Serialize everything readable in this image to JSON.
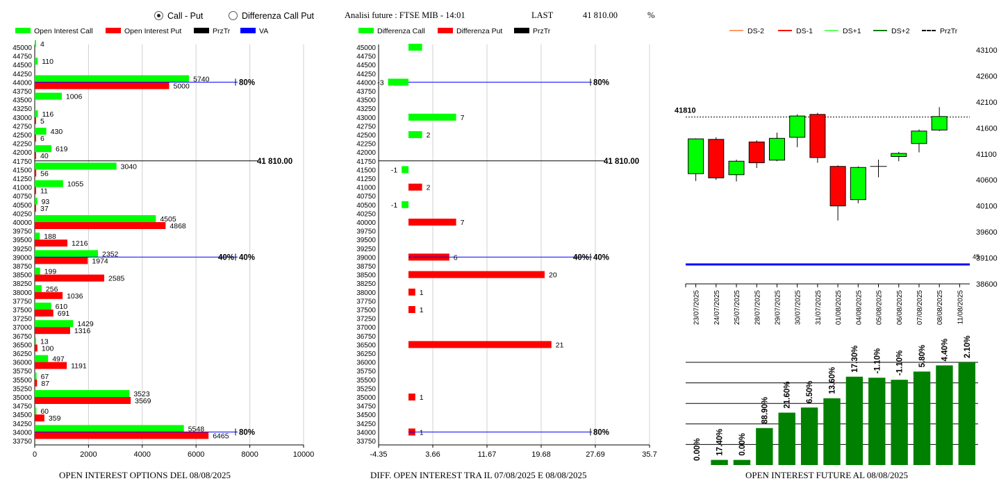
{
  "header": {
    "radio_call_put": "Call - Put",
    "radio_diff": "Differenza Call Put",
    "title": "Analisi future : FTSE MIB - 14:01",
    "last_label": "LAST",
    "last_value": "41 810.00",
    "pct_label": "%"
  },
  "legends": {
    "left": [
      {
        "label": "Open Interest Call",
        "color": "#00ff00"
      },
      {
        "label": "Open Interest Put",
        "color": "#ff0000"
      },
      {
        "label": "PrzTr",
        "color": "#000000"
      },
      {
        "label": "VA",
        "color": "#0000ff"
      }
    ],
    "middle": [
      {
        "label": "Differenza Call",
        "color": "#00ff00"
      },
      {
        "label": "Differenza Put",
        "color": "#ff0000"
      },
      {
        "label": "PrzTr",
        "color": "#000000"
      }
    ],
    "right": [
      {
        "label": "DS-2",
        "color": "#ff9966"
      },
      {
        "label": "DS-1",
        "color": "#ff0000"
      },
      {
        "label": "DS+1",
        "color": "#66ff66"
      },
      {
        "label": "DS+2",
        "color": "#008000"
      },
      {
        "label": "PrzTr",
        "color": "#000000"
      }
    ]
  },
  "captions": {
    "left": "OPEN INTEREST OPTIONS DEL 08/08/2025",
    "middle": "DIFF. OPEN INTEREST TRA IL 07/08/2025 E 08/08/2025",
    "right": "OPEN INTEREST FUTURE AL 08/08/2025"
  },
  "colors": {
    "call": "#00ff00",
    "put": "#ff0000",
    "va": "#0000ff",
    "future_bar": "#008000"
  },
  "chart_data": [
    {
      "type": "bar",
      "orientation": "horizontal",
      "strikes": [
        45000,
        44750,
        44500,
        44250,
        44000,
        43750,
        43500,
        43250,
        43000,
        42750,
        42500,
        42250,
        42000,
        41750,
        41500,
        41250,
        41000,
        40750,
        40500,
        40250,
        40000,
        39750,
        39500,
        39250,
        39000,
        38750,
        38500,
        38250,
        38000,
        37750,
        37500,
        37250,
        37000,
        36750,
        36500,
        36250,
        36000,
        35750,
        35500,
        35250,
        35000,
        34750,
        34500,
        34250,
        34000,
        33750
      ],
      "series": [
        {
          "name": "Open Interest Call",
          "values": [
            4,
            0,
            110,
            0,
            5740,
            0,
            1006,
            0,
            116,
            0,
            430,
            0,
            619,
            0,
            3040,
            0,
            1055,
            0,
            93,
            0,
            4505,
            0,
            188,
            0,
            2352,
            0,
            199,
            0,
            256,
            0,
            610,
            0,
            1429,
            0,
            13,
            0,
            497,
            0,
            67,
            0,
            3523,
            0,
            60,
            0,
            5548,
            0
          ]
        },
        {
          "name": "Open Interest Put",
          "values": [
            0,
            0,
            0,
            0,
            5000,
            0,
            0,
            0,
            5,
            0,
            6,
            0,
            40,
            0,
            56,
            0,
            11,
            0,
            37,
            0,
            4868,
            0,
            1216,
            0,
            1974,
            0,
            2585,
            0,
            1036,
            0,
            691,
            0,
            1316,
            0,
            100,
            0,
            1191,
            0,
            87,
            0,
            3569,
            0,
            359,
            0,
            6465,
            0
          ]
        }
      ],
      "xlim": [
        0,
        10000
      ],
      "xticks": [
        "0",
        "2000",
        "4000",
        "6000",
        "8000",
        "10000"
      ],
      "price_line": {
        "strike": 41750,
        "label": "41 810.00"
      },
      "va_lines": [
        {
          "strike": 44000,
          "labels": [
            "80%"
          ]
        },
        {
          "strike": 39000,
          "labels": [
            "40%",
            "40%"
          ]
        },
        {
          "strike": 34000,
          "labels": [
            "80%"
          ]
        }
      ]
    },
    {
      "type": "bar",
      "orientation": "horizontal",
      "strikes": [
        45000,
        44750,
        44500,
        44250,
        44000,
        43750,
        43500,
        43250,
        43000,
        42750,
        42500,
        42250,
        42000,
        41750,
        41500,
        41250,
        41000,
        40750,
        40500,
        40250,
        40000,
        39750,
        39500,
        39250,
        39000,
        38750,
        38500,
        38250,
        38000,
        37750,
        37500,
        37250,
        37000,
        36750,
        36500,
        36250,
        36000,
        35750,
        35500,
        35250,
        35000,
        34750,
        34500,
        34250,
        34000,
        33750
      ],
      "bars": [
        {
          "strike": 45000,
          "value": 2,
          "series": "Differenza Call",
          "label": ""
        },
        {
          "strike": 44000,
          "value": -3,
          "series": "Differenza Call",
          "label": "-3"
        },
        {
          "strike": 43000,
          "value": 7,
          "series": "Differenza Call",
          "label": "7"
        },
        {
          "strike": 42500,
          "value": 2,
          "series": "Differenza Call",
          "label": "2"
        },
        {
          "strike": 41500,
          "value": -1,
          "series": "Differenza Call",
          "label": "-1"
        },
        {
          "strike": 41000,
          "value": 2,
          "series": "Differenza Put",
          "label": "2"
        },
        {
          "strike": 40500,
          "value": -1,
          "series": "Differenza Call",
          "label": "-1"
        },
        {
          "strike": 40000,
          "value": 7,
          "series": "Differenza Put",
          "label": "7"
        },
        {
          "strike": 39000,
          "value": 6,
          "series": "Differenza Put",
          "label": "6"
        },
        {
          "strike": 38500,
          "value": 20,
          "series": "Differenza Put",
          "label": "20"
        },
        {
          "strike": 38000,
          "value": 1,
          "series": "Differenza Put",
          "label": "1"
        },
        {
          "strike": 37500,
          "value": 1,
          "series": "Differenza Put",
          "label": "1"
        },
        {
          "strike": 36500,
          "value": 21,
          "series": "Differenza Put",
          "label": "21"
        },
        {
          "strike": 35000,
          "value": 1,
          "series": "Differenza Put",
          "label": "1"
        },
        {
          "strike": 34000,
          "value": 1,
          "series": "Differenza Put",
          "label": "1"
        }
      ],
      "xlim": [
        -4.35,
        35.7
      ],
      "xticks": [
        "-4.35",
        "3.66",
        "11.67",
        "19.68",
        "27.69",
        "35.7"
      ],
      "price_line": {
        "strike": 41750,
        "label": "41 810.00"
      },
      "va_lines": [
        {
          "strike": 44000,
          "labels": [
            "80%"
          ]
        },
        {
          "strike": 39000,
          "labels": [
            "40%",
            "40%"
          ]
        },
        {
          "strike": 34000,
          "labels": [
            "80%"
          ]
        }
      ]
    },
    {
      "type": "candlestick",
      "dates": [
        "23/07/2025",
        "24/07/2025",
        "25/07/2025",
        "28/07/2025",
        "29/07/2025",
        "30/07/2025",
        "31/07/2025",
        "01/08/2025",
        "04/08/2025",
        "05/08/2025",
        "06/08/2025",
        "07/08/2025",
        "08/08/2025",
        "11/08/2025"
      ],
      "candles": [
        {
          "open": 40720,
          "close": 41390,
          "high": 41400,
          "low": 40580
        },
        {
          "open": 41380,
          "close": 40640,
          "high": 41420,
          "low": 40600
        },
        {
          "open": 40700,
          "close": 40960,
          "high": 40990,
          "low": 40570
        },
        {
          "open": 41330,
          "close": 40930,
          "high": 41360,
          "low": 40830
        },
        {
          "open": 40980,
          "close": 41400,
          "high": 41510,
          "low": 40960
        },
        {
          "open": 41420,
          "close": 41830,
          "high": 41860,
          "low": 41230
        },
        {
          "open": 41860,
          "close": 41030,
          "high": 41890,
          "low": 40930
        },
        {
          "open": 40860,
          "close": 40100,
          "high": 40880,
          "low": 39820
        },
        {
          "open": 40220,
          "close": 40840,
          "high": 40860,
          "low": 40150
        },
        {
          "open": 40860,
          "close": 40860,
          "high": 40990,
          "low": 40650
        },
        {
          "open": 41050,
          "close": 41110,
          "high": 41140,
          "low": 40960
        },
        {
          "open": 41300,
          "close": 41540,
          "high": 41570,
          "low": 41130
        },
        {
          "open": 41560,
          "close": 41820,
          "high": 42000,
          "low": 41540
        },
        null
      ],
      "ylim": [
        38600,
        43100
      ],
      "yticks": [
        "43100",
        "42600",
        "42100",
        "41600",
        "41100",
        "40600",
        "40100",
        "39600",
        "39100",
        "38600"
      ],
      "prztr": {
        "value": 41810,
        "label": "41810"
      },
      "va_label": "45",
      "va_value": 39000
    },
    {
      "type": "bar",
      "values": [
        0.0,
        17.4,
        0.0,
        88.9,
        21.6,
        6.5,
        13.6,
        17.3,
        -1.1,
        -1.1,
        5.8,
        4.4,
        2.1
      ],
      "labels": [
        "0.00%",
        "17.40%",
        "0.00%",
        "88.90%",
        "21.60%",
        "6.50%",
        "13.60%",
        "17.30%",
        "-1.10%",
        "-1.10%",
        "5.80%",
        "4.40%",
        "2.10%"
      ],
      "heights": [
        0,
        0.05,
        0.05,
        0.36,
        0.51,
        0.56,
        0.65,
        0.86,
        0.85,
        0.83,
        0.91,
        0.97,
        1.0
      ]
    }
  ]
}
